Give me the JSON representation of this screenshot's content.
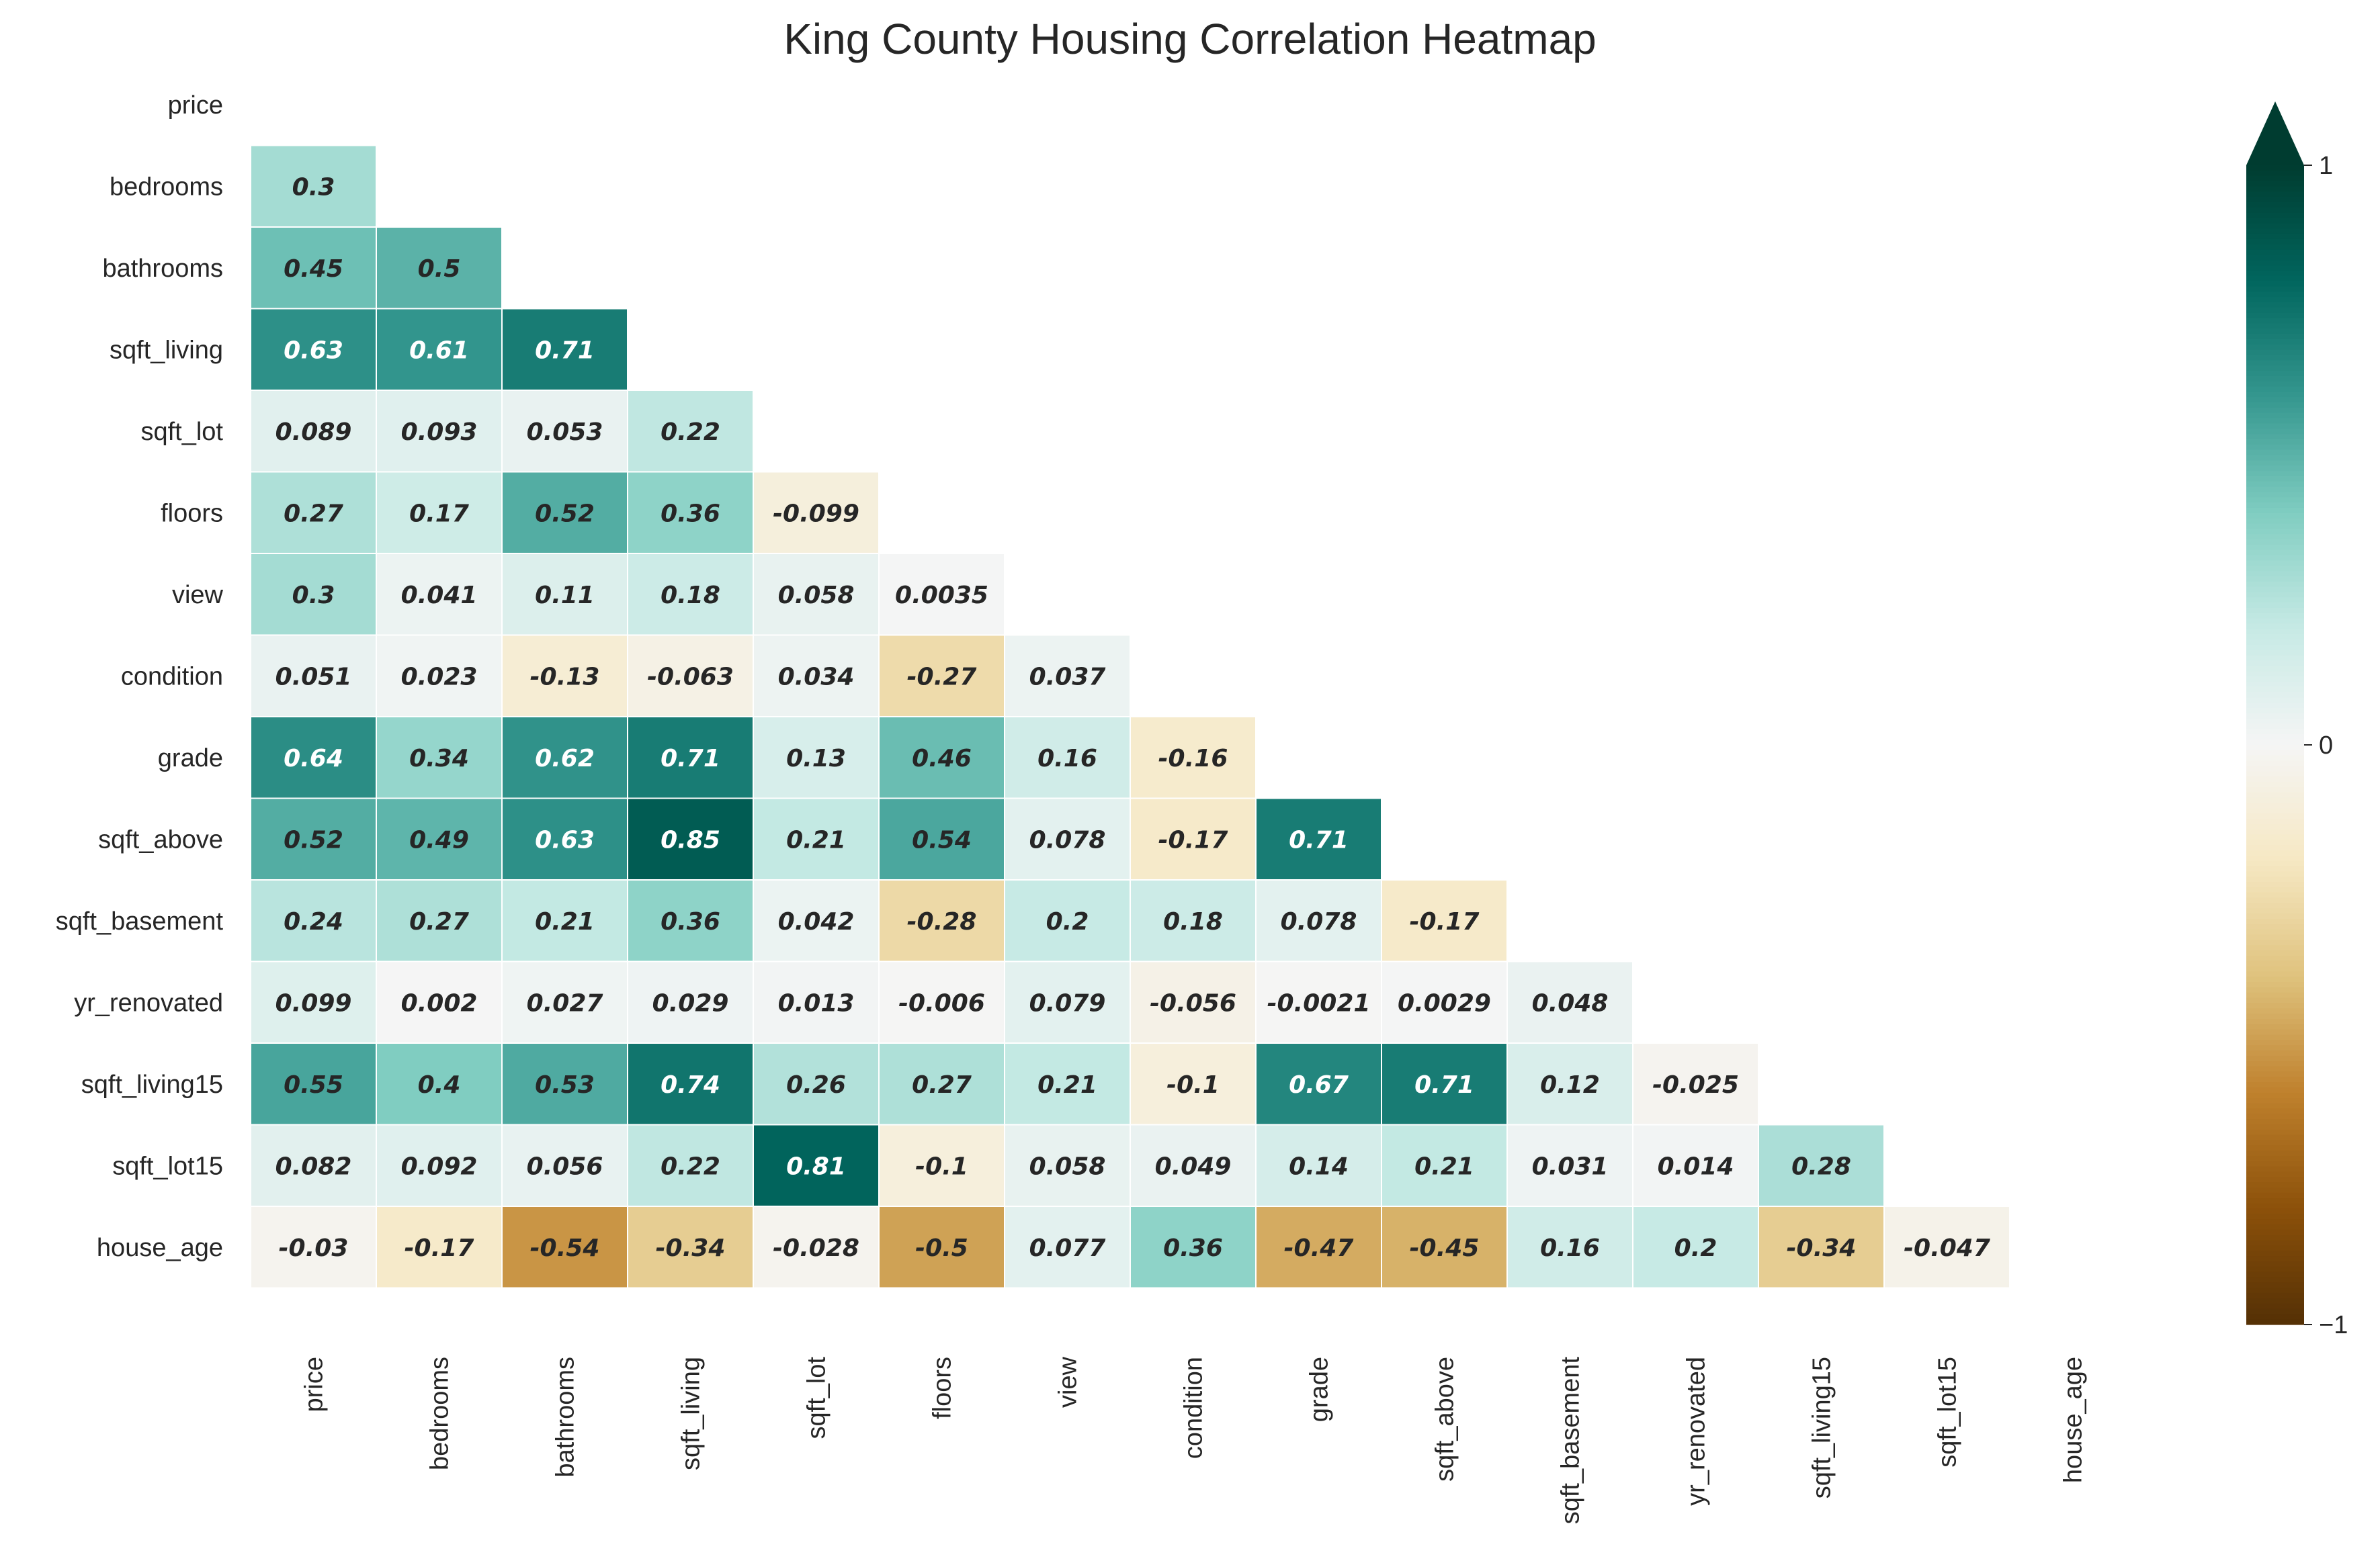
{
  "chart_data": {
    "type": "heatmap",
    "title": "King County Housing Correlation Heatmap",
    "variables": [
      "price",
      "bedrooms",
      "bathrooms",
      "sqft_living",
      "sqft_lot",
      "floors",
      "view",
      "condition",
      "grade",
      "sqft_above",
      "sqft_basement",
      "yr_renovated",
      "sqft_living15",
      "sqft_lot15",
      "house_age"
    ],
    "mask": "upper-triangle-including-diagonal",
    "lower_triangle": [
      [],
      [
        0.3
      ],
      [
        0.45,
        0.5
      ],
      [
        0.63,
        0.61,
        0.71
      ],
      [
        0.089,
        0.093,
        0.053,
        0.22
      ],
      [
        0.27,
        0.17,
        0.52,
        0.36,
        -0.099
      ],
      [
        0.3,
        0.041,
        0.11,
        0.18,
        0.058,
        0.0035
      ],
      [
        0.051,
        0.023,
        -0.13,
        -0.063,
        0.034,
        -0.27,
        0.037
      ],
      [
        0.64,
        0.34,
        0.62,
        0.71,
        0.13,
        0.46,
        0.16,
        -0.16
      ],
      [
        0.52,
        0.49,
        0.63,
        0.85,
        0.21,
        0.54,
        0.078,
        -0.17,
        0.71
      ],
      [
        0.24,
        0.27,
        0.21,
        0.36,
        0.042,
        -0.28,
        0.2,
        0.18,
        0.078,
        -0.17
      ],
      [
        0.099,
        0.002,
        0.027,
        0.029,
        0.013,
        -0.006,
        0.079,
        -0.056,
        -0.0021,
        0.0029,
        0.048
      ],
      [
        0.55,
        0.4,
        0.53,
        0.74,
        0.26,
        0.27,
        0.21,
        -0.1,
        0.67,
        0.71,
        0.12,
        -0.025
      ],
      [
        0.082,
        0.092,
        0.056,
        0.22,
        0.81,
        -0.1,
        0.058,
        0.049,
        0.14,
        0.21,
        0.031,
        0.014,
        0.28
      ],
      [
        -0.03,
        -0.17,
        -0.54,
        -0.34,
        -0.028,
        -0.5,
        0.077,
        0.36,
        -0.47,
        -0.45,
        0.16,
        0.2,
        -0.34,
        -0.047
      ]
    ],
    "colorscale": {
      "name": "BrBG",
      "vmin": -1,
      "vmax": 1,
      "extend": "max",
      "ticks": [
        1,
        0,
        -1
      ],
      "stops": [
        "#543005",
        "#8c510a",
        "#bf812d",
        "#dfc27d",
        "#f6e8c3",
        "#f5f5f5",
        "#c7eae5",
        "#80cdc1",
        "#35978f",
        "#01665e",
        "#003c30"
      ]
    }
  }
}
